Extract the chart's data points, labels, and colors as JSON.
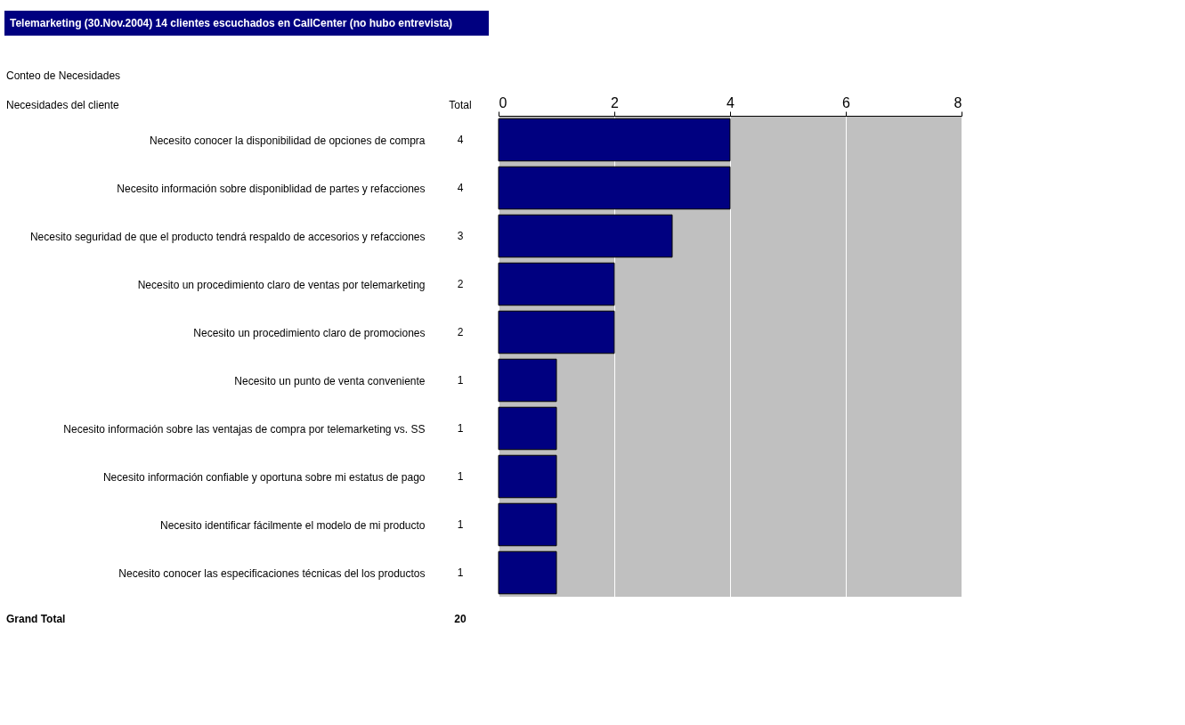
{
  "chart_data": {
    "type": "bar",
    "orientation": "horizontal",
    "title": "Telemarketing (30.Nov.2004) 14 clientes escuchados en CallCenter (no hubo entrevista)",
    "ylabel": "Necesidades del cliente",
    "xlabel": "Total",
    "categories": [
      "Necesito conocer la disponibilidad de opciones de compra",
      "Necesito información sobre disponiblidad de partes y refacciones",
      "Necesito seguridad de que el producto tendrá respaldo de accesorios y refacciones",
      "Necesito un procedimiento claro de ventas por telemarketing",
      "Necesito un procedimiento claro de promociones",
      "Necesito un punto de venta conveniente",
      "Necesito información sobre las ventajas de compra por telemarketing vs. SS",
      "Necesito información confiable y oportuna sobre mi estatus de pago",
      "Necesito identificar fácilmente el modelo de mi producto",
      "Necesito conocer las especificaciones técnicas del los productos"
    ],
    "values": [
      4,
      4,
      3,
      2,
      2,
      1,
      1,
      1,
      1,
      1
    ],
    "color": "#000080",
    "xlim": [
      0,
      8
    ],
    "xticks": [
      0,
      2,
      4,
      6,
      8
    ],
    "grid": "x",
    "data_labels": true,
    "annotations": [
      "Conteo de Necesidades",
      "Grand Total",
      "20"
    ]
  }
}
